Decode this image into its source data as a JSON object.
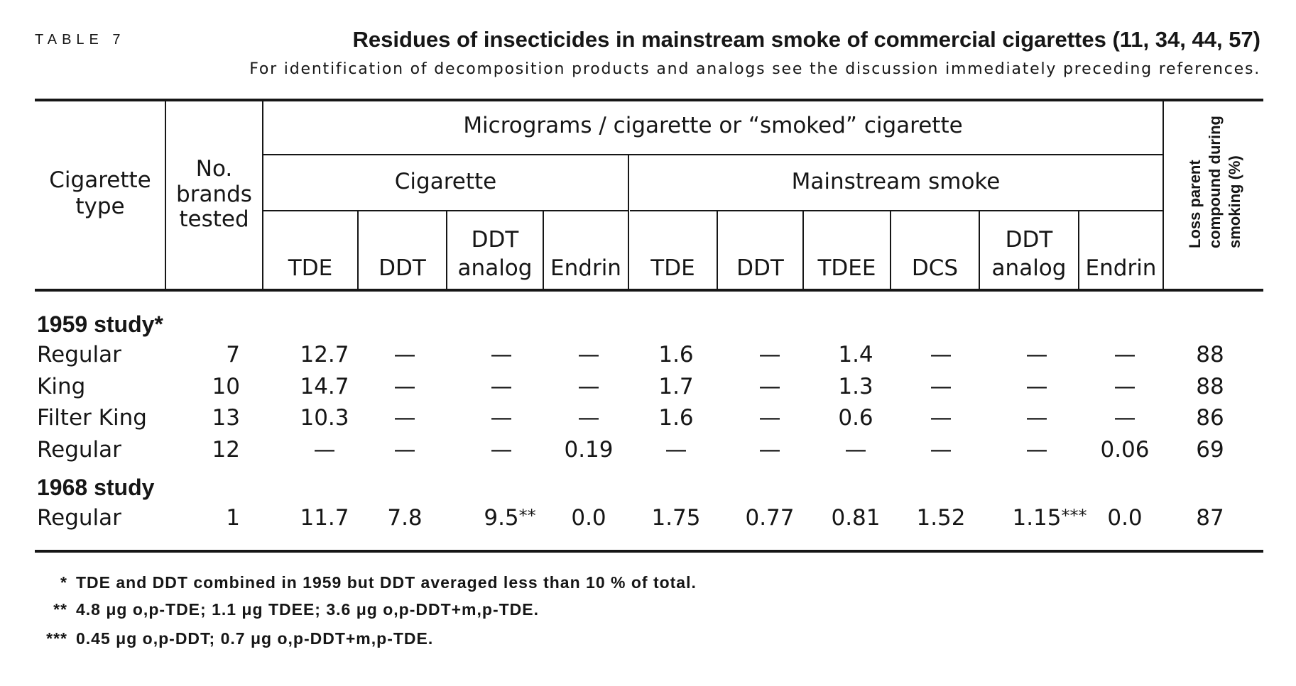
{
  "table_label": "TABLE 7",
  "title": "Residues of insecticides in mainstream smoke of commercial cigarettes (11, 34, 44, 57)",
  "subtitle": "For identification of decomposition products and analogs see the discussion immediately preceding references.",
  "header": {
    "cigarette_type": [
      "Cigarette",
      "type"
    ],
    "brands_tested": [
      "No.",
      "brands",
      "tested"
    ],
    "units": "Micrograms / cigarette or “smoked” cigarette",
    "group_cigarette": "Cigarette",
    "group_smoke": "Mainstream smoke",
    "cigarette_columns": [
      [
        "TDE"
      ],
      [
        "DDT"
      ],
      [
        "DDT",
        "analog"
      ],
      [
        "Endrin"
      ]
    ],
    "smoke_columns": [
      [
        "TDE"
      ],
      [
        "DDT"
      ],
      [
        "TDEE"
      ],
      [
        "DCS"
      ],
      [
        "DDT",
        "analog"
      ],
      [
        "Endrin"
      ]
    ],
    "loss": [
      "Loss parent",
      "compound during",
      "smoking (%)"
    ]
  },
  "groups": [
    {
      "label": "1959 study*",
      "rows": [
        {
          "label": "Regular",
          "brands": "7",
          "cigarette": [
            "12.7",
            "—",
            "—",
            "—"
          ],
          "smoke": [
            "1.6",
            "—",
            "1.4",
            "—",
            "—",
            "—"
          ],
          "loss": "88"
        },
        {
          "label": "King",
          "brands": "10",
          "cigarette": [
            "14.7",
            "—",
            "—",
            "—"
          ],
          "smoke": [
            "1.7",
            "—",
            "1.3",
            "—",
            "—",
            "—"
          ],
          "loss": "88"
        },
        {
          "label": "Filter King",
          "brands": "13",
          "cigarette": [
            "10.3",
            "—",
            "—",
            "—"
          ],
          "smoke": [
            "1.6",
            "—",
            "0.6",
            "—",
            "—",
            "—"
          ],
          "loss": "86"
        },
        {
          "label": "Regular",
          "brands": "12",
          "cigarette": [
            "—",
            "—",
            "—",
            "0.19"
          ],
          "smoke": [
            "—",
            "—",
            "—",
            "—",
            "—",
            "0.06"
          ],
          "loss": "69"
        }
      ]
    },
    {
      "label": "1968 study",
      "rows": [
        {
          "label": "Regular",
          "brands": "1",
          "cigarette": [
            "11.7",
            "7.8",
            "9.5**",
            "0.0"
          ],
          "smoke": [
            "1.75",
            "0.77",
            "0.81",
            "1.52",
            "1.15***",
            "0.0"
          ],
          "loss": "87"
        }
      ]
    }
  ],
  "footnotes": [
    {
      "marker": "*",
      "text": "TDE and DDT combined in 1959 but DDT averaged less than 10 % of total."
    },
    {
      "marker": "**",
      "text": "4.8 μg o,p-TDE; 1.1 μg TDEE; 3.6 μg o,p-DDT+m,p-TDE."
    },
    {
      "marker": "***",
      "text": "0.45 μg o,p-DDT; 0.7 μg o,p-DDT+m,p-TDE."
    }
  ]
}
